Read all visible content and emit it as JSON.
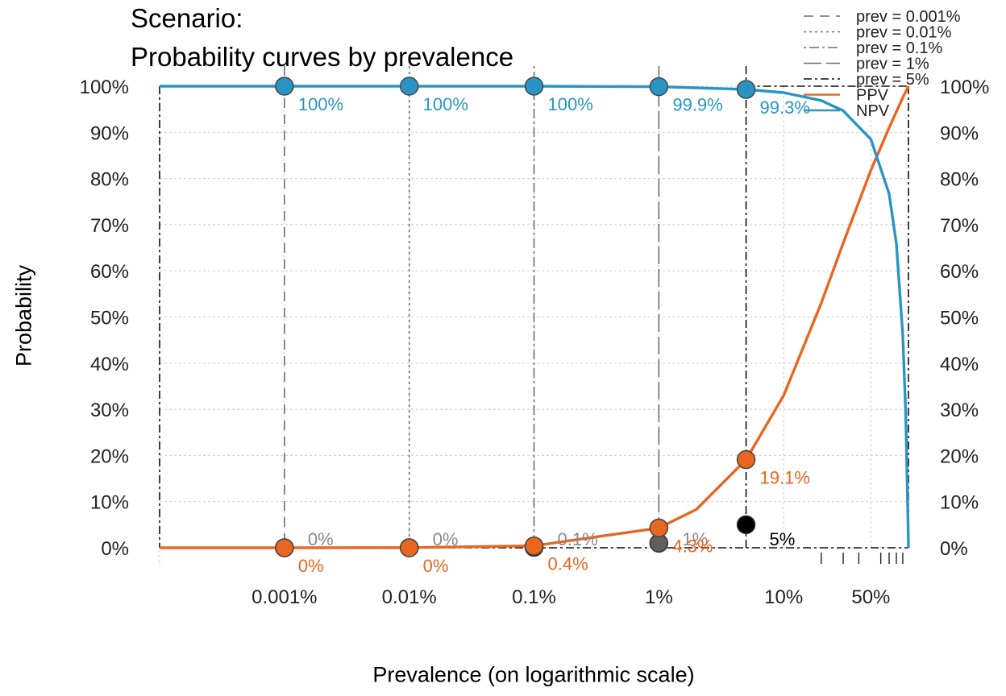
{
  "chart_data": {
    "type": "line",
    "title": "Scenario:",
    "subtitle": "Probability curves by prevalence",
    "xlabel": "Prevalence (on logarithmic scale)",
    "ylabel": "Probability",
    "x_scale": "log",
    "xlim": [
      1e-06,
      1
    ],
    "ylim": [
      0,
      1
    ],
    "x_ticks": [
      {
        "value": 1e-05,
        "label": "0.001%"
      },
      {
        "value": 0.0001,
        "label": "0.01%"
      },
      {
        "value": 0.001,
        "label": "0.1%"
      },
      {
        "value": 0.01,
        "label": "1%"
      },
      {
        "value": 0.1,
        "label": "10%"
      },
      {
        "value": 0.5,
        "label": "50%"
      }
    ],
    "y_ticks": [
      "0%",
      "10%",
      "20%",
      "30%",
      "40%",
      "50%",
      "60%",
      "70%",
      "80%",
      "90%",
      "100%"
    ],
    "grid": true,
    "legend_position": "top-right",
    "colors": {
      "ppv": "#E8661F",
      "npv": "#2A95C4",
      "prev": "#6e6e6e"
    },
    "series": [
      {
        "name": "PPV",
        "color": "#E8661F",
        "x": [
          1e-06,
          1e-05,
          0.0001,
          0.001,
          0.01,
          0.02,
          0.05,
          0.1,
          0.2,
          0.3,
          0.5,
          0.7,
          0.9,
          1
        ],
        "y": [
          4e-06,
          4e-05,
          0.0004,
          0.0044,
          0.043,
          0.083,
          0.191,
          0.33,
          0.53,
          0.66,
          0.818,
          0.91,
          0.975,
          1
        ]
      },
      {
        "name": "NPV",
        "color": "#2A95C4",
        "x": [
          1e-06,
          1e-05,
          0.0001,
          0.001,
          0.01,
          0.05,
          0.1,
          0.2,
          0.3,
          0.5,
          0.7,
          0.8,
          0.9,
          0.95,
          0.99,
          1
        ],
        "y": [
          1,
          1,
          1,
          1,
          0.999,
          0.993,
          0.986,
          0.969,
          0.947,
          0.885,
          0.767,
          0.659,
          0.463,
          0.29,
          0.07,
          0
        ]
      }
    ],
    "prevalence_markers": [
      {
        "legend": "prev = 0.001%",
        "value": 1e-05,
        "dash": "12,8",
        "prev_label": "0%",
        "ppv": 0,
        "ppv_label": "0%",
        "npv": 1,
        "npv_label": "100%"
      },
      {
        "legend": "prev = 0.01%",
        "value": 0.0001,
        "dash": "3,4",
        "prev_label": "0%",
        "ppv": 0,
        "ppv_label": "0%",
        "npv": 1,
        "npv_label": "100%"
      },
      {
        "legend": "prev = 0.1%",
        "value": 0.001,
        "dash": "3,4,12,4",
        "prev_label": "0.1%",
        "ppv": 0.004,
        "ppv_label": "0.4%",
        "npv": 1,
        "npv_label": "100%"
      },
      {
        "legend": "prev = 1%",
        "value": 0.01,
        "dash": "22,6",
        "prev_label": "1%",
        "ppv": 0.043,
        "ppv_label": "4.3%",
        "npv": 0.999,
        "npv_label": "99.9%"
      },
      {
        "legend": "prev = 5%",
        "value": 0.05,
        "dash": "10,4,3,4",
        "prev_label": "5%",
        "ppv": 0.191,
        "ppv_label": "19.1%",
        "npv": 0.993,
        "npv_label": "99.3%"
      }
    ],
    "legend": {
      "ppv_label": "PPV",
      "npv_label": "NPV"
    }
  }
}
